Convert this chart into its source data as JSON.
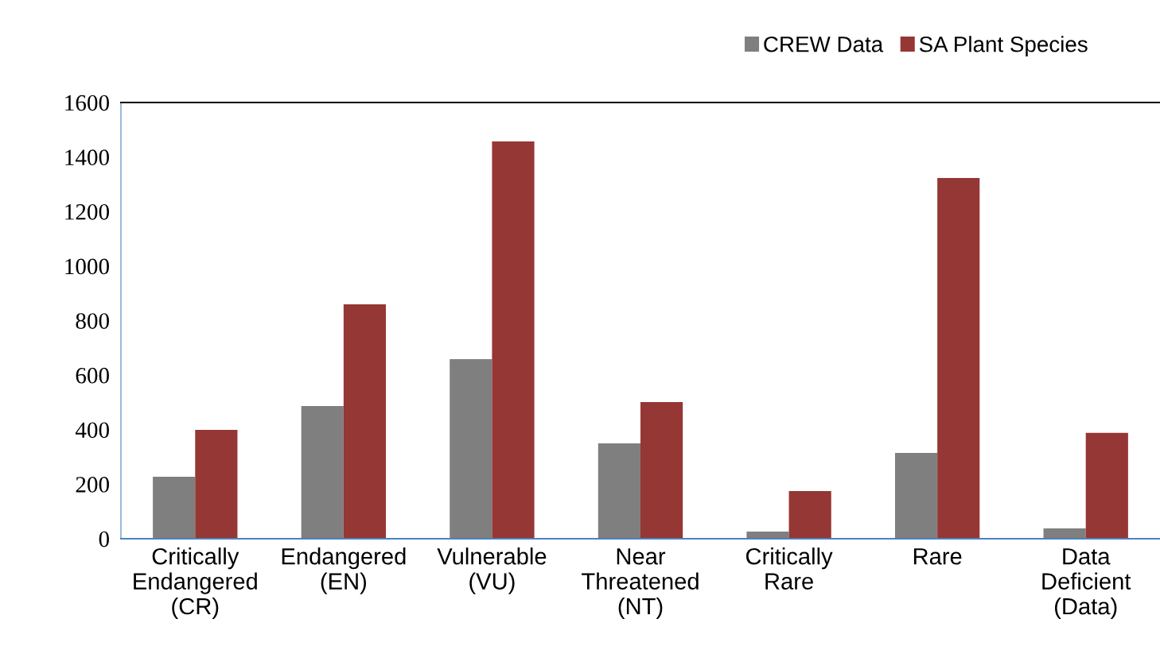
{
  "chart_data": {
    "type": "bar",
    "categories": [
      "Critically\nEndangered\n(CR)",
      "Endangered\n(EN)",
      "Vulnerable\n(VU)",
      "Near\nThreatened\n(NT)",
      "Critically\nRare",
      "Rare",
      "Data\nDeficient\n(Data)"
    ],
    "series": [
      {
        "name": "CREW Data",
        "color": "#7f7f7f",
        "values": [
          227,
          487,
          659,
          350,
          26,
          315,
          38
        ]
      },
      {
        "name": "SA Plant Species",
        "color": "#953735",
        "values": [
          399,
          860,
          1457,
          501,
          175,
          1323,
          388
        ]
      }
    ],
    "ylim": [
      0,
      1600
    ],
    "yticks": [
      0,
      200,
      400,
      600,
      800,
      1000,
      1200,
      1400,
      1600
    ],
    "grid": false,
    "legend": "top right"
  }
}
